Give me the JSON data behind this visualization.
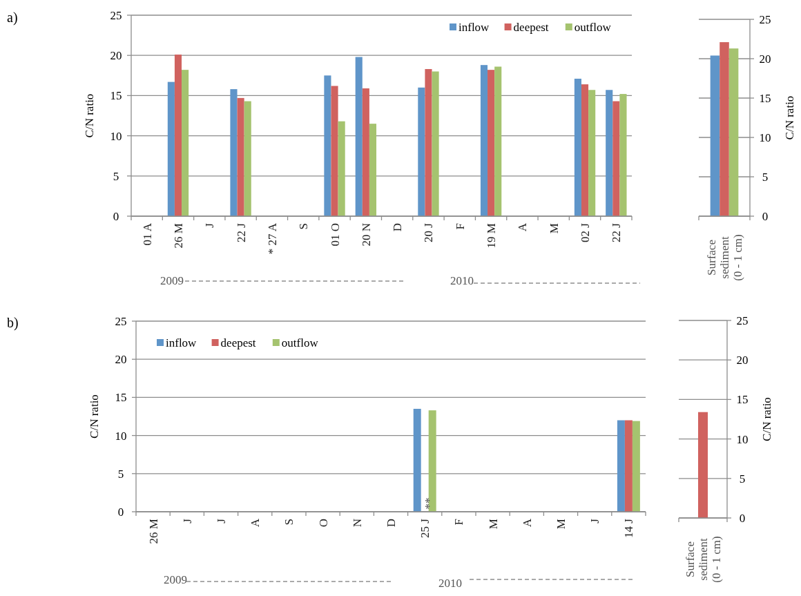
{
  "chart_data": [
    {
      "type": "bar",
      "ylabel": "C/N ratio",
      "categories": [
        "01 A",
        "26 M",
        "J",
        "22 J",
        "* 27 A",
        "S",
        "01 O",
        "20 N",
        "D",
        "20 J",
        "F",
        "19 M",
        "A",
        "M",
        "02 J",
        "22 J"
      ],
      "series": [
        {
          "name": "inflow",
          "color": "#5f95c9",
          "values": [
            null,
            16.7,
            null,
            15.8,
            null,
            null,
            17.5,
            19.8,
            null,
            16.0,
            null,
            18.8,
            null,
            null,
            17.1,
            15.7
          ]
        },
        {
          "name": "deepest",
          "color": "#d0625f",
          "values": [
            null,
            20.1,
            null,
            14.7,
            null,
            null,
            16.2,
            15.9,
            null,
            18.3,
            null,
            18.2,
            null,
            null,
            16.4,
            14.3
          ]
        },
        {
          "name": "outflow",
          "color": "#a5c36f",
          "values": [
            null,
            18.2,
            null,
            14.3,
            null,
            null,
            11.8,
            11.5,
            null,
            18.0,
            null,
            18.6,
            null,
            null,
            15.7,
            15.2
          ]
        }
      ],
      "ylim": [
        0,
        25
      ],
      "yticks": [
        0,
        5,
        10,
        15,
        20,
        25
      ],
      "grid": "y",
      "legend": "top right",
      "annotations": [
        "2009",
        "2010",
        "a)"
      ]
    },
    {
      "type": "bar",
      "ylabel": "C/N ratio",
      "categories": [
        "Surface sediment (0 - 1 cm)"
      ],
      "series": [
        {
          "color": "#5f95c9",
          "values": [
            20.4
          ]
        },
        {
          "color": "#d0625f",
          "values": [
            22.1
          ]
        },
        {
          "color": "#a5c36f",
          "values": [
            21.3
          ]
        }
      ],
      "ylim": [
        0,
        25
      ],
      "yticks": [
        0,
        5,
        10,
        15,
        20,
        25
      ],
      "grid": "y"
    },
    {
      "type": "bar",
      "ylabel": "C/N ratio",
      "categories": [
        "26 M",
        "J",
        "J",
        "A",
        "S",
        "O",
        "N",
        "D",
        "25 J",
        "F",
        "M",
        "A",
        "M",
        "J",
        "14 J"
      ],
      "series": [
        {
          "name": "inflow",
          "color": "#5f95c9",
          "values": [
            null,
            null,
            null,
            null,
            null,
            null,
            null,
            null,
            13.5,
            null,
            null,
            null,
            null,
            null,
            12.0
          ]
        },
        {
          "name": "deepest",
          "color": "#d0625f",
          "values": [
            null,
            null,
            null,
            null,
            null,
            null,
            null,
            null,
            null,
            null,
            null,
            null,
            null,
            null,
            12.0
          ]
        },
        {
          "name": "outflow",
          "color": "#a5c36f",
          "values": [
            null,
            null,
            null,
            null,
            null,
            null,
            null,
            null,
            13.3,
            null,
            null,
            null,
            null,
            null,
            11.9
          ]
        }
      ],
      "ylim": [
        0,
        25
      ],
      "yticks": [
        0,
        5,
        10,
        15,
        20,
        25
      ],
      "grid": "y",
      "legend": "top left",
      "annotations": [
        "2009",
        "2010",
        "**",
        "b)"
      ]
    },
    {
      "type": "bar",
      "ylabel": "C/N ratio",
      "categories": [
        "Surface sediment (0 - 1 cm)"
      ],
      "series": [
        {
          "color": "#d0625f",
          "values": [
            13.4
          ]
        }
      ],
      "ylim": [
        0,
        25
      ],
      "yticks": [
        0,
        5,
        10,
        15,
        20,
        25
      ],
      "grid": "y"
    }
  ]
}
